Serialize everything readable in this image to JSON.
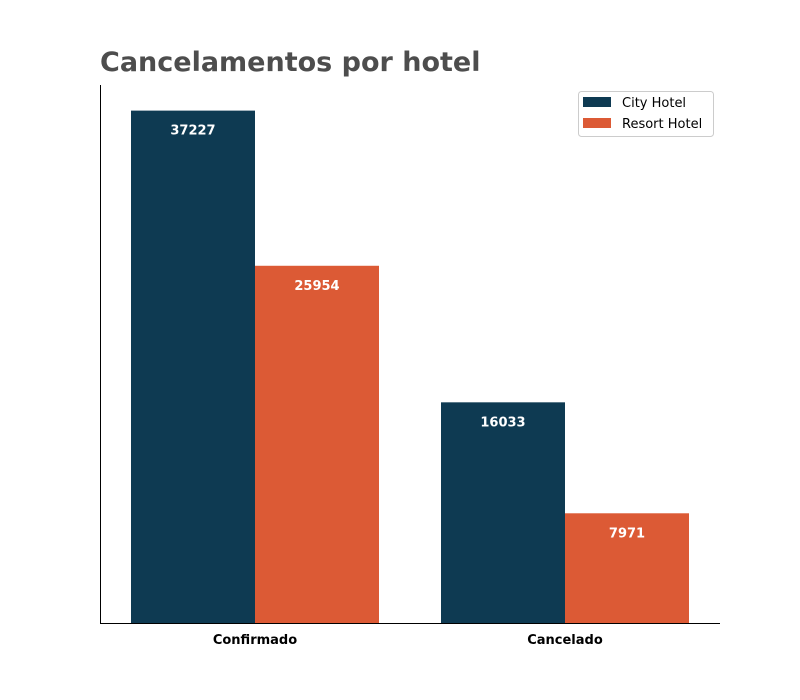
{
  "chart_data": {
    "type": "bar",
    "title": "Cancelamentos por hotel",
    "xlabel": "",
    "ylabel": "",
    "categories": [
      "Confirmado",
      "Cancelado"
    ],
    "series": [
      {
        "name": "City Hotel",
        "values": [
          37227,
          16033
        ],
        "color": "#0e3a52"
      },
      {
        "name": "Resort Hotel",
        "values": [
          25954,
          7971
        ],
        "color": "#dc5a35"
      }
    ],
    "ylim": [
      0,
      39088
    ],
    "grid": false,
    "y_ticks_visible": false,
    "legend": "top-right",
    "value_label_color": "#ffffff"
  }
}
